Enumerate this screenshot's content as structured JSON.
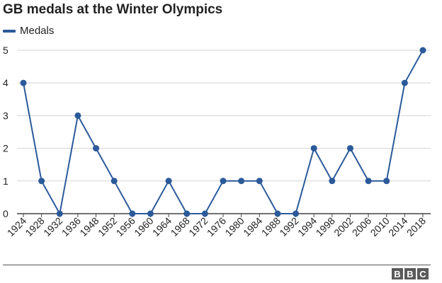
{
  "chart_data": {
    "type": "line",
    "title": "GB medals at the Winter Olympics",
    "xlabel": "",
    "ylabel": "",
    "categories": [
      "1924",
      "1928",
      "1932",
      "1936",
      "1948",
      "1952",
      "1956",
      "1960",
      "1964",
      "1968",
      "1972",
      "1976",
      "1980",
      "1984",
      "1988",
      "1992",
      "1994",
      "1998",
      "2002",
      "2006",
      "2010",
      "2014",
      "2018"
    ],
    "series": [
      {
        "name": "Medals",
        "values": [
          4,
          1,
          0,
          3,
          2,
          1,
          0,
          0,
          1,
          0,
          0,
          1,
          1,
          1,
          0,
          0,
          2,
          1,
          2,
          1,
          1,
          4,
          5
        ]
      }
    ],
    "ylim": [
      0,
      5
    ],
    "yticks": [
      "0",
      "1",
      "2",
      "3",
      "4",
      "5"
    ],
    "grid": true,
    "legend": "top-left",
    "colors": {
      "series": "#2b5a9a",
      "grid": "#d4d4d4",
      "axis": "#444444",
      "text": "#222222"
    }
  },
  "branding": {
    "logo_letters": [
      "B",
      "B",
      "C"
    ]
  }
}
